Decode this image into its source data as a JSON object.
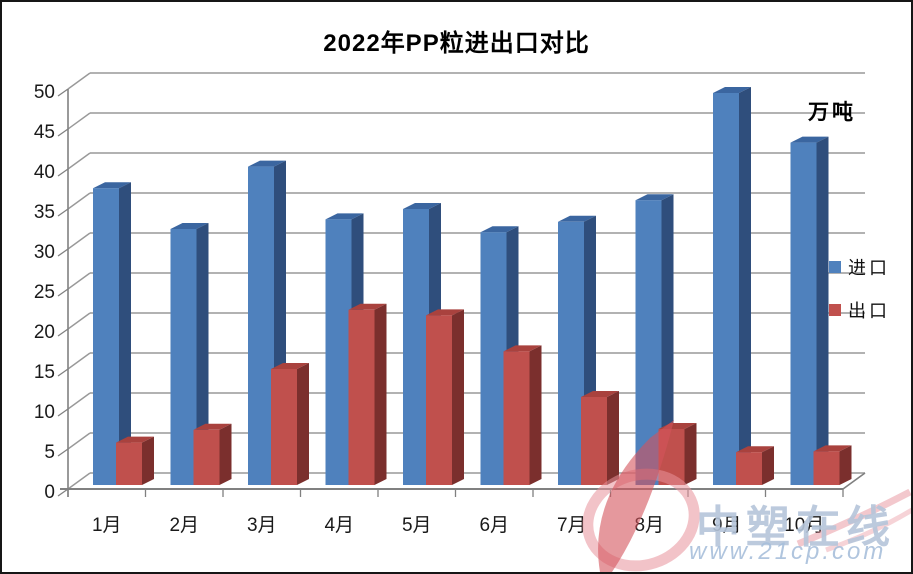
{
  "chart_data": {
    "type": "bar",
    "style": "3d-clustered-column",
    "title": "2022年PP粒进出口对比",
    "unit": "万吨",
    "categories": [
      "1月",
      "2月",
      "3月",
      "4月",
      "5月",
      "6月",
      "7月",
      "8月",
      "9月",
      "10月"
    ],
    "series": [
      {
        "name": "进口",
        "color": "#4F81BD",
        "values": [
          37.1,
          32.0,
          39.8,
          33.2,
          34.5,
          31.6,
          32.9,
          35.6,
          49.0,
          42.8
        ]
      },
      {
        "name": "出口",
        "color": "#C0504D",
        "values": [
          5.3,
          6.9,
          14.5,
          21.9,
          21.2,
          16.7,
          11.0,
          7.0,
          4.1,
          4.2
        ]
      }
    ],
    "ylim": [
      0,
      50
    ],
    "ytick_step": 5,
    "grid": true,
    "legend_position": "right"
  },
  "watermark": {
    "brand": "中塑在线",
    "url": "www.21cp.com"
  },
  "colors": {
    "import_front": "#4F81BD",
    "import_side": "#2F4E7C",
    "import_top": "#3B66A0",
    "export_front": "#C0504D",
    "export_side": "#7B2F2D",
    "export_top": "#A9423E",
    "gridline": "#999999",
    "axis": "#808080",
    "text": "#1A1A1A",
    "watermark_text": "#B5C5DA",
    "watermark_url": "#A8BFDB",
    "watermark_pink": "#E8929B",
    "watermark_red": "#D4545C"
  }
}
